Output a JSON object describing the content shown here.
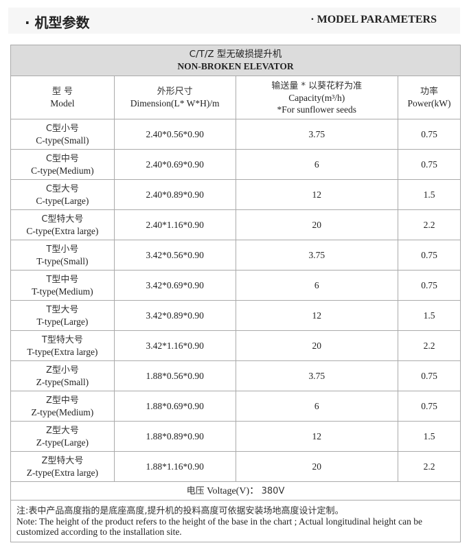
{
  "header": {
    "title_cn": "· 机型参数",
    "title_en": "· MODEL PARAMETERS"
  },
  "table": {
    "title_cn": "C/T/Z 型无破损提升机",
    "title_en": "NON-BROKEN ELEVATOR",
    "columns": [
      {
        "cn": "型 号",
        "en": "Model"
      },
      {
        "cn": "外形尺寸",
        "en": "Dimension(L* W*H)/m"
      },
      {
        "cn": "输送量 * 以葵花籽为准",
        "en": "Capacity(m³/h)",
        "en2": "*For sunflower seeds"
      },
      {
        "cn": "功率",
        "en": "Power(kW)"
      }
    ],
    "rows": [
      {
        "cn": "C型小号",
        "en": "C-type(Small)",
        "dim": "2.40*0.56*0.90",
        "cap": "3.75",
        "power": "0.75"
      },
      {
        "cn": "C型中号",
        "en": "C-type(Medium)",
        "dim": "2.40*0.69*0.90",
        "cap": "6",
        "power": "0.75"
      },
      {
        "cn": "C型大号",
        "en": "C-type(Large)",
        "dim": "2.40*0.89*0.90",
        "cap": "12",
        "power": "1.5"
      },
      {
        "cn": "C型特大号",
        "en": "C-type(Extra large)",
        "dim": "2.40*1.16*0.90",
        "cap": "20",
        "power": "2.2"
      },
      {
        "cn": "T型小号",
        "en": "T-type(Small)",
        "dim": "3.42*0.56*0.90",
        "cap": "3.75",
        "power": "0.75"
      },
      {
        "cn": "T型中号",
        "en": "T-type(Medium)",
        "dim": "3.42*0.69*0.90",
        "cap": "6",
        "power": "0.75"
      },
      {
        "cn": "T型大号",
        "en": "T-type(Large)",
        "dim": "3.42*0.89*0.90",
        "cap": "12",
        "power": "1.5"
      },
      {
        "cn": "T型特大号",
        "en": "T-type(Extra large)",
        "dim": "3.42*1.16*0.90",
        "cap": "20",
        "power": "2.2"
      },
      {
        "cn": "Z型小号",
        "en": "Z-type(Small)",
        "dim": "1.88*0.56*0.90",
        "cap": "3.75",
        "power": "0.75"
      },
      {
        "cn": "Z型中号",
        "en": "Z-type(Medium)",
        "dim": "1.88*0.69*0.90",
        "cap": "6",
        "power": "0.75"
      },
      {
        "cn": "Z型大号",
        "en": "Z-type(Large)",
        "dim": "1.88*0.89*0.90",
        "cap": "12",
        "power": "1.5"
      },
      {
        "cn": "Z型特大号",
        "en": "Z-type(Extra large)",
        "dim": "1.88*1.16*0.90",
        "cap": "20",
        "power": "2.2"
      }
    ],
    "voltage_cn": "电压",
    "voltage_en": "Voltage(V)：",
    "voltage_value": "380V",
    "note_cn": "注:表中产品高度指的是底座高度,提升机的投料高度可依据安装场地高度设计定制。",
    "note_en": "Note:  The height of the product refers to the height of the base in the chart ; Actual longitudinal height can be customized according to the installation site."
  }
}
